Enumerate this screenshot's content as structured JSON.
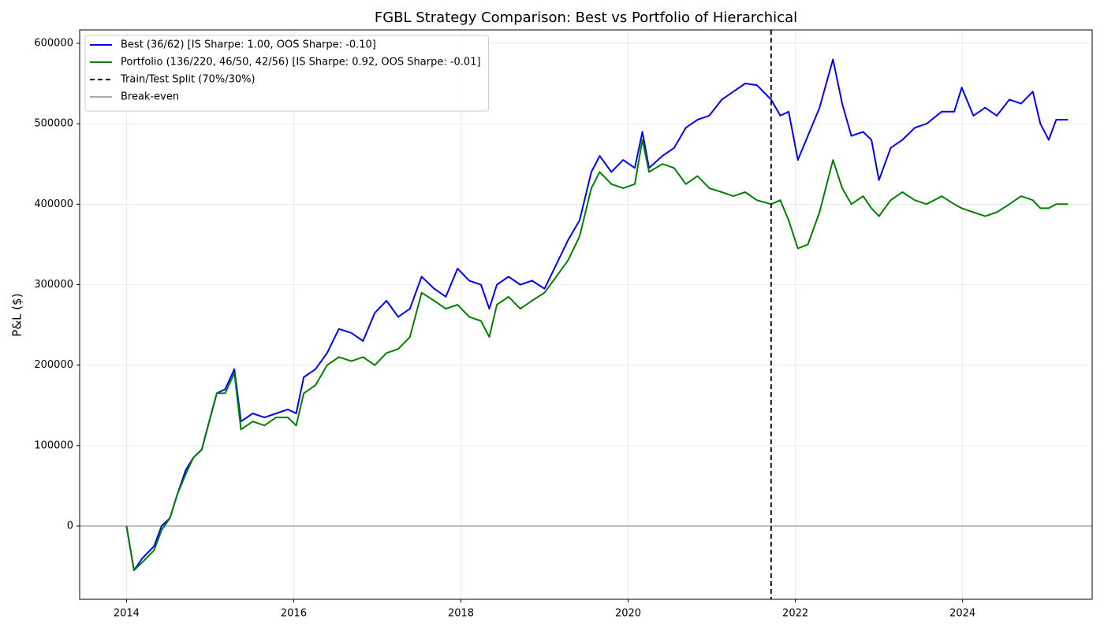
{
  "chart_data": {
    "type": "line",
    "title": "FGBL Strategy Comparison: Best vs Portfolio of Hierarchical",
    "y_label": "P&L ($)",
    "x": [
      2014.0,
      2014.09,
      2014.19,
      2014.33,
      2014.42,
      2014.52,
      2014.61,
      2014.71,
      2014.8,
      2014.9,
      2014.99,
      2015.08,
      2015.18,
      2015.29,
      2015.37,
      2015.51,
      2015.65,
      2015.79,
      2015.93,
      2016.03,
      2016.12,
      2016.26,
      2016.4,
      2016.54,
      2016.69,
      2016.83,
      2016.97,
      2017.11,
      2017.25,
      2017.39,
      2017.53,
      2017.68,
      2017.82,
      2017.96,
      2018.1,
      2018.24,
      2018.34,
      2018.43,
      2018.57,
      2018.71,
      2018.85,
      2019.0,
      2019.14,
      2019.28,
      2019.42,
      2019.56,
      2019.66,
      2019.8,
      2019.94,
      2020.08,
      2020.17,
      2020.25,
      2020.41,
      2020.55,
      2020.69,
      2020.83,
      2020.97,
      2021.12,
      2021.26,
      2021.4,
      2021.54,
      2021.71,
      2021.82,
      2021.92,
      2022.03,
      2022.15,
      2022.29,
      2022.45,
      2022.56,
      2022.67,
      2022.81,
      2022.91,
      2023.0,
      2023.14,
      2023.28,
      2023.43,
      2023.57,
      2023.75,
      2023.9,
      2023.99,
      2024.13,
      2024.27,
      2024.41,
      2024.56,
      2024.7,
      2024.84,
      2024.93,
      2025.03,
      2025.12,
      2025.26
    ],
    "series": [
      {
        "name": "Best (36/62) [IS Sharpe: 1.00, OOS Sharpe: -0.10]",
        "color": "#0000ff",
        "values": [
          0,
          -55000,
          -40000,
          -25000,
          0,
          10000,
          40000,
          70000,
          85000,
          95000,
          130000,
          165000,
          170000,
          195000,
          130000,
          140000,
          135000,
          140000,
          145000,
          140000,
          185000,
          195000,
          215000,
          245000,
          240000,
          230000,
          265000,
          280000,
          260000,
          270000,
          310000,
          295000,
          285000,
          320000,
          305000,
          300000,
          270000,
          300000,
          310000,
          300000,
          305000,
          295000,
          325000,
          355000,
          380000,
          440000,
          460000,
          440000,
          455000,
          445000,
          490000,
          445000,
          460000,
          470000,
          495000,
          505000,
          510000,
          530000,
          540000,
          550000,
          548000,
          530000,
          510000,
          515000,
          455000,
          485000,
          520000,
          580000,
          525000,
          485000,
          490000,
          480000,
          430000,
          470000,
          480000,
          495000,
          500000,
          515000,
          515000,
          545000,
          510000,
          520000,
          510000,
          530000,
          525000,
          540000,
          500000,
          480000,
          505000,
          505000
        ]
      },
      {
        "name": "Portfolio (136/220, 46/50, 42/56) [IS Sharpe: 0.92, OOS Sharpe: -0.01]",
        "color": "#008000",
        "values": [
          0,
          -55000,
          -45000,
          -30000,
          -5000,
          10000,
          40000,
          65000,
          85000,
          95000,
          130000,
          165000,
          165000,
          190000,
          120000,
          130000,
          125000,
          135000,
          135000,
          125000,
          165000,
          175000,
          200000,
          210000,
          205000,
          210000,
          200000,
          215000,
          220000,
          235000,
          290000,
          280000,
          270000,
          275000,
          260000,
          255000,
          235000,
          275000,
          285000,
          270000,
          280000,
          290000,
          310000,
          330000,
          360000,
          420000,
          440000,
          425000,
          420000,
          425000,
          480000,
          440000,
          450000,
          445000,
          425000,
          435000,
          420000,
          415000,
          410000,
          415000,
          405000,
          400000,
          405000,
          380000,
          345000,
          350000,
          390000,
          455000,
          420000,
          400000,
          410000,
          395000,
          385000,
          405000,
          415000,
          405000,
          400000,
          410000,
          400000,
          395000,
          390000,
          385000,
          390000,
          400000,
          410000,
          405000,
          395000,
          395000,
          400000,
          400000
        ]
      }
    ],
    "vlines": [
      {
        "name": "Train/Test Split (70%/30%)",
        "x": 2021.71,
        "color": "#000000",
        "dashed": true
      }
    ],
    "hlines": [
      {
        "name": "Break-even",
        "y": 0,
        "color": "#aaaaaa",
        "dashed": false
      }
    ],
    "xlim": [
      2013.44,
      2025.55
    ],
    "xticks": [
      2014,
      2016,
      2018,
      2020,
      2022,
      2024
    ],
    "ylim": [
      -91000,
      616600
    ],
    "yticks": [
      0,
      100000,
      200000,
      300000,
      400000,
      500000,
      600000
    ],
    "grid": true,
    "legend": "upper left"
  }
}
